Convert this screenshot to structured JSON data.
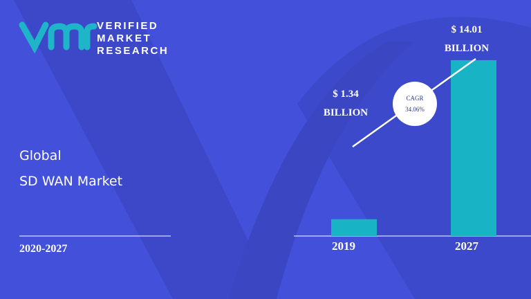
{
  "logo": {
    "lines": [
      "VERIFIED",
      "MARKET",
      "RESEARCH"
    ]
  },
  "title": [
    "Global",
    "SD WAN Market"
  ],
  "period": "2020-2027",
  "chart_data": {
    "type": "bar",
    "categories": [
      "2019",
      "2027"
    ],
    "values": [
      1.34,
      14.01
    ],
    "value_labels": [
      "$ 1.34 BILLION",
      "$ 14.01 BILLION"
    ],
    "color": "#19b3c6",
    "ylim": [
      0,
      15
    ],
    "annotation": [
      "CAGR",
      "34.06%"
    ]
  }
}
